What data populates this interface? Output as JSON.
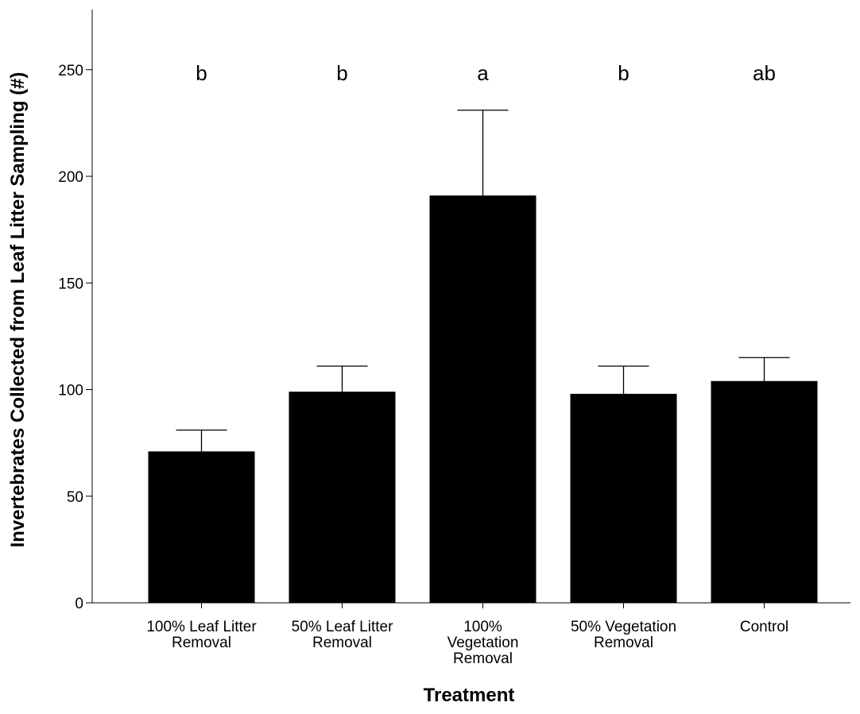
{
  "chart_data": {
    "type": "bar",
    "title": "",
    "xlabel": "Treatment",
    "ylabel": "Invertebrates Collected from Leaf Litter Sampling (#)",
    "ylim": [
      0,
      275
    ],
    "yticks": [
      0,
      50,
      100,
      150,
      200,
      250
    ],
    "grid": false,
    "legend": "none",
    "bar_color": "#000000",
    "categories": [
      "100% Leaf Litter Removal",
      "50% Leaf Litter Removal",
      "100% Vegetation Removal",
      "50% Vegetation Removal",
      "Control"
    ],
    "category_label_lines": [
      [
        "100% Leaf Litter",
        "Removal"
      ],
      [
        "50% Leaf Litter",
        "Removal"
      ],
      [
        "100%",
        "Vegetation",
        "Removal"
      ],
      [
        "50% Vegetation",
        "Removal"
      ],
      [
        "Control"
      ]
    ],
    "values": [
      71,
      99,
      191,
      98,
      104
    ],
    "error_upper": [
      81,
      111,
      231,
      111,
      115
    ],
    "significance_letters": [
      "b",
      "b",
      "a",
      "b",
      "ab"
    ],
    "significance_level": 250
  }
}
